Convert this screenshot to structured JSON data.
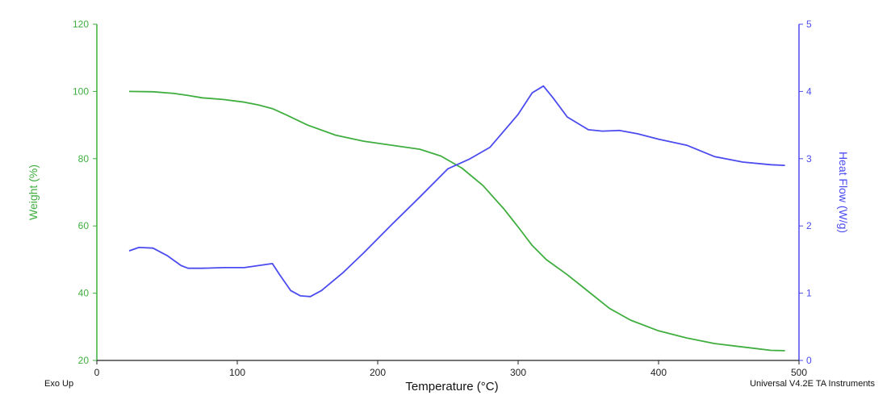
{
  "chart_data": {
    "type": "line",
    "xlabel": "Temperature (°C)",
    "xlim": [
      0,
      500
    ],
    "xticks": [
      0,
      100,
      200,
      300,
      400,
      500
    ],
    "y_left": {
      "label": "Weight (%)",
      "lim": [
        20,
        120
      ],
      "ticks": [
        20,
        40,
        60,
        80,
        100,
        120
      ],
      "color": "#3fae3f"
    },
    "y_right": {
      "label": "Heat Flow (W/g)",
      "lim": [
        0,
        5
      ],
      "ticks": [
        0,
        1,
        2,
        3,
        4,
        5
      ],
      "color": "#4b4bf0"
    },
    "grid": false,
    "series": [
      {
        "axis": "left",
        "color": "#3fae3f",
        "x": [
          23,
          40,
          55,
          65,
          75,
          90,
          105,
          115,
          125,
          135,
          150,
          170,
          190,
          210,
          230,
          245,
          260,
          275,
          290,
          300,
          310,
          320,
          335,
          350,
          365,
          380,
          400,
          420,
          440,
          460,
          480,
          490
        ],
        "y": [
          100,
          99.9,
          99.4,
          98.8,
          98.1,
          97.6,
          96.8,
          96,
          94.9,
          93,
          90,
          87,
          85.2,
          84,
          82.8,
          80.8,
          77.2,
          72,
          65,
          59.7,
          54.2,
          50,
          45.5,
          40.5,
          35.5,
          32,
          28.8,
          26.7,
          25,
          24,
          23,
          22.9
        ]
      },
      {
        "axis": "right",
        "color": "#4b4bf0",
        "x": [
          23,
          30,
          40,
          50,
          60,
          65,
          75,
          90,
          105,
          118,
          125,
          130,
          138,
          145,
          152,
          160,
          175,
          190,
          210,
          230,
          250,
          265,
          280,
          300,
          310,
          318,
          325,
          335,
          350,
          360,
          372,
          385,
          400,
          420,
          440,
          460,
          480,
          490
        ],
        "y": [
          1.63,
          1.68,
          1.67,
          1.56,
          1.41,
          1.37,
          1.37,
          1.38,
          1.38,
          1.42,
          1.44,
          1.28,
          1.04,
          0.96,
          0.95,
          1.04,
          1.3,
          1.6,
          2.02,
          2.43,
          2.85,
          2.99,
          3.17,
          3.66,
          3.98,
          4.08,
          3.9,
          3.62,
          3.43,
          3.41,
          3.42,
          3.37,
          3.29,
          3.2,
          3.03,
          2.95,
          2.91,
          2.9
        ]
      }
    ],
    "footer_left": "Exo Up",
    "footer_right": "Universal V4.2E TA Instruments"
  }
}
